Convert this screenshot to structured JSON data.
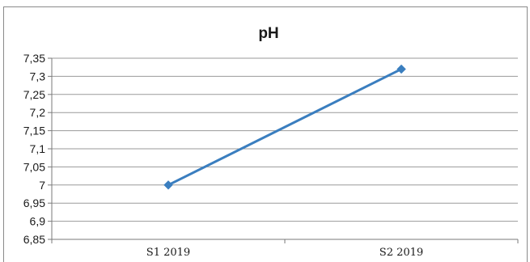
{
  "chart_data": {
    "type": "line",
    "title": "pH",
    "xlabel": "",
    "ylabel": "",
    "categories": [
      "S1 2019",
      "S2 2019"
    ],
    "series": [
      {
        "values": [
          7.0,
          7.32
        ],
        "color": "#3a7ebf"
      }
    ],
    "ylim": [
      6.85,
      7.35
    ],
    "yticks": [
      6.85,
      6.9,
      6.95,
      7.0,
      7.05,
      7.1,
      7.15,
      7.2,
      7.25,
      7.3,
      7.35
    ],
    "ytick_labels": [
      "6,85",
      "6,9",
      "6,95",
      "7",
      "7,05",
      "7,1",
      "7,15",
      "7,2",
      "7,25",
      "7,3",
      "7,35"
    ],
    "grid": true,
    "legend": "none",
    "marker": "diamond"
  }
}
